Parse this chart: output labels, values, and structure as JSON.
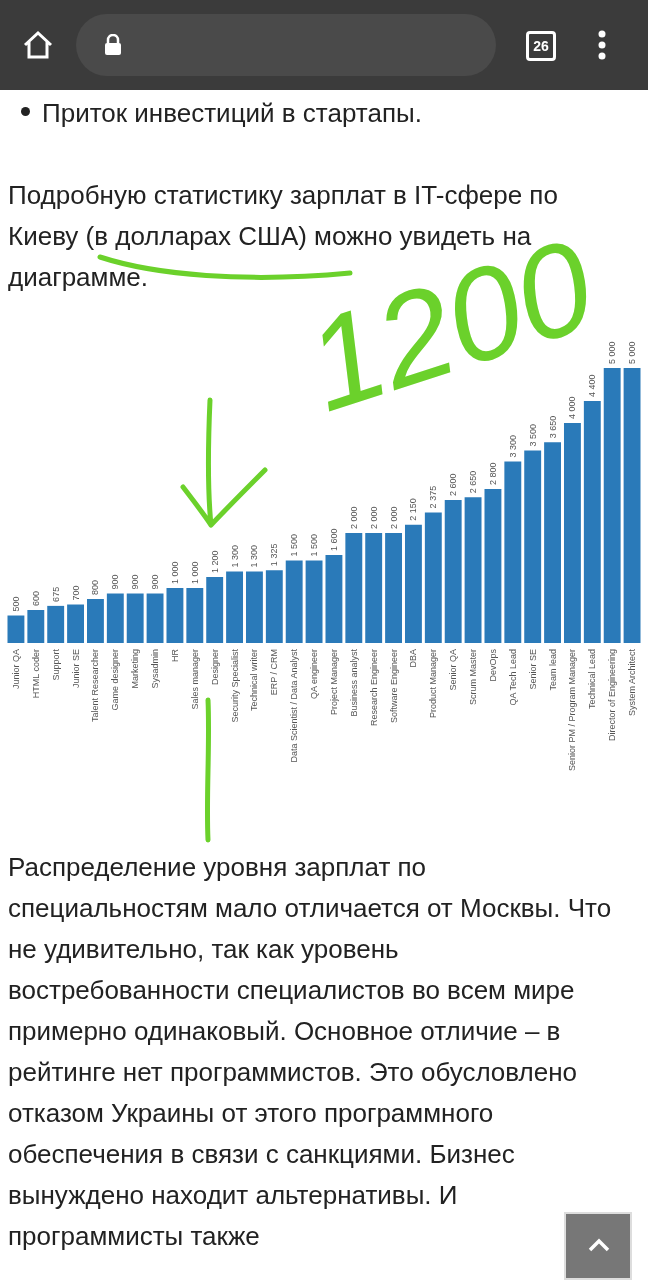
{
  "chart_data": {
    "type": "bar",
    "categories": [
      "Junior QA",
      "HTML coder",
      "Support",
      "Junior SE",
      "Talent Researcher",
      "Game designer",
      "Marketing",
      "Sysadmin",
      "HR",
      "Sales manager",
      "Designer",
      "Security Specialist",
      "Technical writer",
      "ERP / CRM",
      "Data Scientist / Data Analyst",
      "QA engineer",
      "Project Manager",
      "Business analyst",
      "Research Engineer",
      "Software Engineer",
      "DBA",
      "Product Manager",
      "Senior QA",
      "Scrum Master",
      "DevOps",
      "QA Tech Lead",
      "Senior SE",
      "Team lead",
      "Senior PM / Program Manager",
      "Technical Lead",
      "Director of Engineering",
      "System Architect"
    ],
    "values": [
      500,
      600,
      675,
      700,
      800,
      900,
      900,
      900,
      1000,
      1000,
      1200,
      1300,
      1300,
      1325,
      1500,
      1500,
      1600,
      2000,
      2000,
      2000,
      2150,
      2375,
      2600,
      2650,
      2800,
      3300,
      3500,
      3650,
      4000,
      4400,
      5000,
      5000
    ],
    "value_labels": [
      "500",
      "600",
      "675",
      "700",
      "800",
      "900",
      "900",
      "900",
      "1 000",
      "1 000",
      "1 200",
      "1 300",
      "1 300",
      "1 325",
      "1 500",
      "1 500",
      "1 600",
      "2 000",
      "2 000",
      "2 000",
      "2 150",
      "2 375",
      "2 600",
      "2 650",
      "2 800",
      "3 300",
      "3 500",
      "3 650",
      "4 000",
      "4 400",
      "5 000",
      "5 000"
    ],
    "color": "#2a7ab9",
    "annotations": [
      "Приток инвестиций в стартапы.",
      "Подробную статистику зарплат в IT-сфере по Киеву (в долларах США) можно увидеть на диаграмме.",
      "Распределение уровня зарплат по специальностям мало отличается от Москвы. Что не удивительно, так как уровень востребованности специалистов во всем мире примерно одинаковый. Основное отличие – в рейтинге нет программистов. Это обусловлено отказом Украины от этого программного обеспечения в связи с санкциями. Бизнес вынуждено находит альтернативы. И программисты также",
      "1200",
      "26"
    ]
  }
}
